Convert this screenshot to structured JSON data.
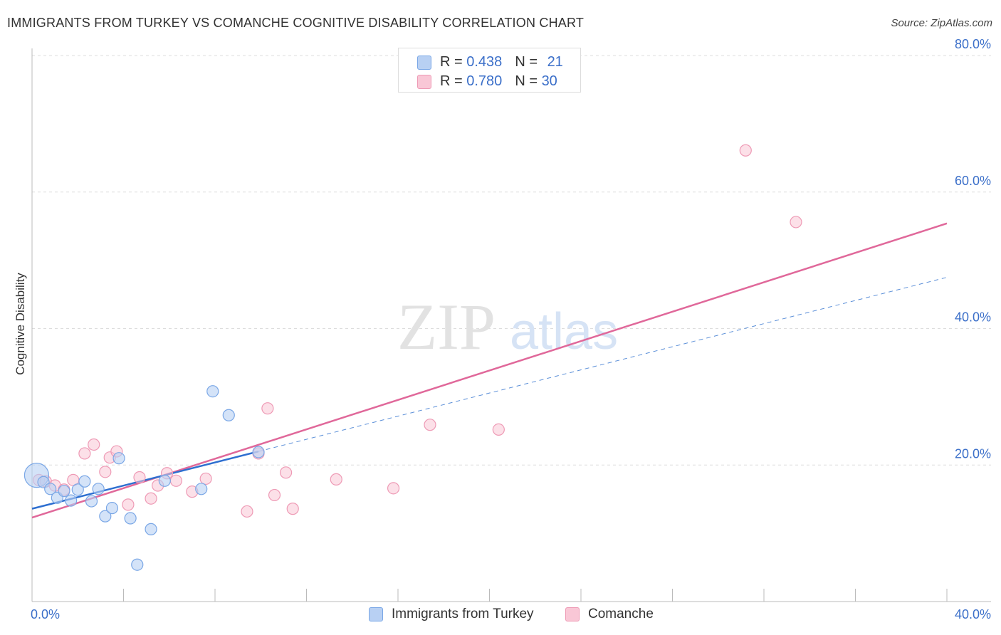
{
  "header": {
    "title": "IMMIGRANTS FROM TURKEY VS COMANCHE COGNITIVE DISABILITY CORRELATION CHART",
    "source": "Source: ZipAtlas.com"
  },
  "watermark": {
    "part1": "ZIP",
    "part2": "atlas"
  },
  "legend_top": {
    "series1": {
      "r_label": "R = ",
      "r_value": "0.438",
      "n_label": "N = ",
      "n_value": "21"
    },
    "series2": {
      "r_label": "R = ",
      "r_value": "0.780",
      "n_label": "N = ",
      "n_value": "30"
    }
  },
  "legend_bottom": {
    "series1_label": "Immigrants from Turkey",
    "series2_label": "Comanche"
  },
  "colors": {
    "blue_fill": "#b8d0f3",
    "blue_stroke": "#7aa7e6",
    "blue_line": "#2e6fd0",
    "pink_fill": "#f9c7d6",
    "pink_stroke": "#ee9ab5",
    "pink_line": "#e0689a",
    "axis_text": "#3b6fc9",
    "grid": "#dddddd"
  },
  "chart_data": {
    "type": "scatter",
    "title": "IMMIGRANTS FROM TURKEY VS COMANCHE COGNITIVE DISABILITY CORRELATION CHART",
    "xlabel": "",
    "ylabel": "Cognitive Disability",
    "xlim": [
      0,
      40
    ],
    "ylim": [
      0,
      80
    ],
    "x_tick_labels": [
      "0.0%",
      "40.0%"
    ],
    "y_ticks": [
      20,
      40,
      60,
      80
    ],
    "y_tick_labels": [
      "20.0%",
      "40.0%",
      "60.0%",
      "80.0%"
    ],
    "grid": true,
    "series": [
      {
        "name": "Immigrants from Turkey",
        "R": 0.438,
        "N": 21,
        "points": [
          {
            "x": 0.2,
            "y": 18.5,
            "big": true
          },
          {
            "x": 0.5,
            "y": 17.5
          },
          {
            "x": 0.8,
            "y": 16.5
          },
          {
            "x": 1.1,
            "y": 15.2
          },
          {
            "x": 1.4,
            "y": 16.2
          },
          {
            "x": 1.7,
            "y": 14.8
          },
          {
            "x": 2.0,
            "y": 16.4
          },
          {
            "x": 2.3,
            "y": 17.6
          },
          {
            "x": 2.6,
            "y": 14.7
          },
          {
            "x": 2.9,
            "y": 16.5
          },
          {
            "x": 3.2,
            "y": 12.5
          },
          {
            "x": 3.5,
            "y": 13.7
          },
          {
            "x": 3.8,
            "y": 21.0
          },
          {
            "x": 4.3,
            "y": 12.2
          },
          {
            "x": 4.6,
            "y": 5.4
          },
          {
            "x": 5.2,
            "y": 10.6
          },
          {
            "x": 5.8,
            "y": 17.7
          },
          {
            "x": 7.4,
            "y": 16.5
          },
          {
            "x": 7.9,
            "y": 30.8
          },
          {
            "x": 8.6,
            "y": 27.3
          },
          {
            "x": 9.9,
            "y": 21.9
          }
        ],
        "trend": {
          "x0": 0,
          "y0": 13.6,
          "x1": 40,
          "y1": 47.5,
          "solid_until_x": 9.9
        }
      },
      {
        "name": "Comanche",
        "R": 0.78,
        "N": 30,
        "points": [
          {
            "x": 0.3,
            "y": 17.8
          },
          {
            "x": 0.6,
            "y": 17.6
          },
          {
            "x": 1.0,
            "y": 17.0
          },
          {
            "x": 1.4,
            "y": 16.4
          },
          {
            "x": 1.8,
            "y": 17.8
          },
          {
            "x": 2.3,
            "y": 21.7
          },
          {
            "x": 2.7,
            "y": 23.0
          },
          {
            "x": 3.2,
            "y": 19.0
          },
          {
            "x": 3.4,
            "y": 21.1
          },
          {
            "x": 3.7,
            "y": 22.0
          },
          {
            "x": 4.2,
            "y": 14.2
          },
          {
            "x": 4.7,
            "y": 18.2
          },
          {
            "x": 5.2,
            "y": 15.1
          },
          {
            "x": 5.5,
            "y": 17.0
          },
          {
            "x": 5.9,
            "y": 18.8
          },
          {
            "x": 6.3,
            "y": 17.7
          },
          {
            "x": 7.0,
            "y": 16.1
          },
          {
            "x": 7.6,
            "y": 18.0
          },
          {
            "x": 9.4,
            "y": 13.2
          },
          {
            "x": 9.9,
            "y": 21.7
          },
          {
            "x": 10.3,
            "y": 28.3
          },
          {
            "x": 10.6,
            "y": 15.6
          },
          {
            "x": 11.1,
            "y": 18.9
          },
          {
            "x": 11.4,
            "y": 13.6
          },
          {
            "x": 13.3,
            "y": 17.9
          },
          {
            "x": 15.8,
            "y": 16.6
          },
          {
            "x": 17.4,
            "y": 25.9
          },
          {
            "x": 20.4,
            "y": 25.2
          },
          {
            "x": 31.2,
            "y": 66.1
          },
          {
            "x": 33.4,
            "y": 55.6
          }
        ],
        "trend": {
          "x0": 0,
          "y0": 12.3,
          "x1": 40,
          "y1": 55.4
        }
      }
    ]
  }
}
